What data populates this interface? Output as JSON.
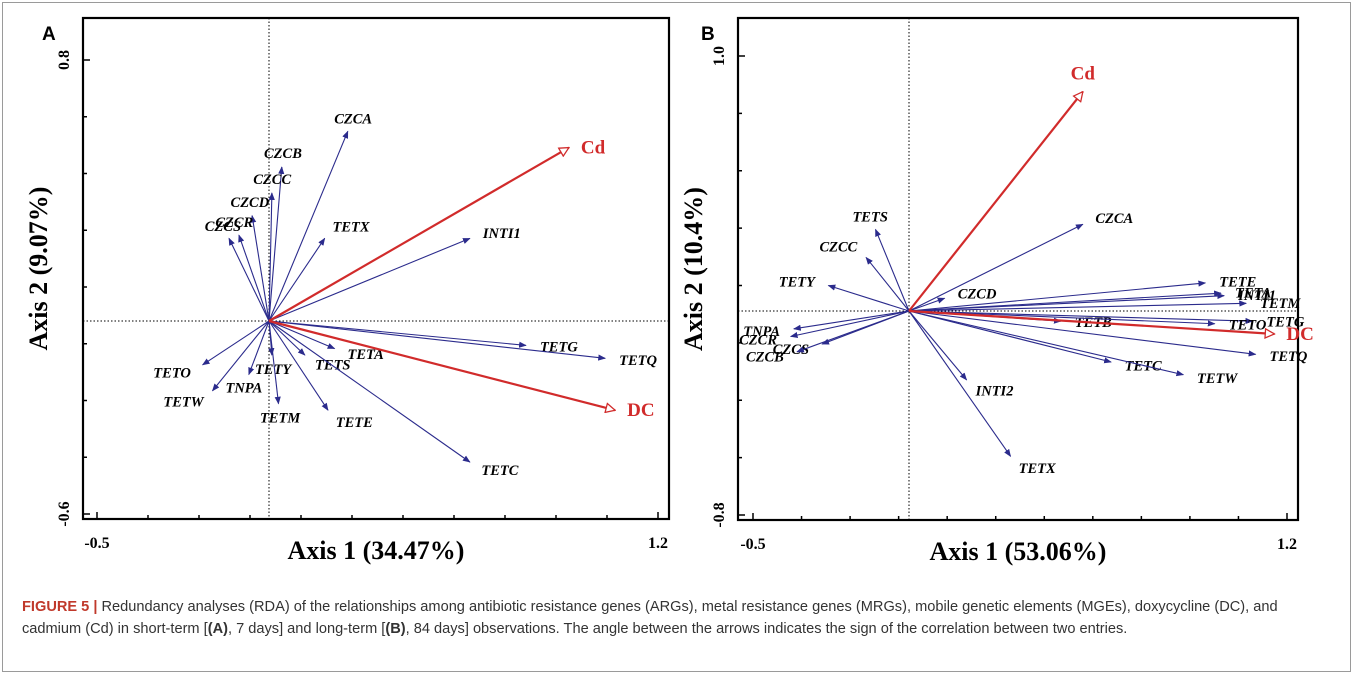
{
  "caption": {
    "label": "FIGURE 5 |",
    "p1": " Redundancy analyses (RDA) of the relationships among antibiotic resistance genes (ARGs), metal resistance genes (MRGs), mobile genetic elements (MGEs), doxycycline (DC), and cadmium (Cd) in short-term [",
    "b1": "(A)",
    "p2": ", 7 days] and long-term [",
    "b2": "(B)",
    "p3": ", 84 days] observations. The angle between the arrows indicates the sign of the correlation between two entries."
  },
  "colors": {
    "gene_arrow": "#2b2b8c",
    "env_arrow": "#d12b2b",
    "env_label": "#d12b2b"
  },
  "chart_data": [
    {
      "type": "scatter",
      "panel": "A",
      "xlabel": "Axis 1 (34.47%)",
      "ylabel": "Axis 2 (9.07%)",
      "xlim": [
        -0.5,
        1.2
      ],
      "ylim": [
        -0.6,
        0.8
      ],
      "x_ticks": [
        "-0.5",
        "1.2"
      ],
      "y_ticks": [
        "0.8",
        "-0.6"
      ],
      "vectors": [
        {
          "label": "CZCA",
          "x": 0.26,
          "y": 0.58
        },
        {
          "label": "CZCB",
          "x": 0.06,
          "y": 0.47
        },
        {
          "label": "CZCC",
          "x": 0.03,
          "y": 0.39
        },
        {
          "label": "CZCD",
          "x": -0.03,
          "y": 0.32
        },
        {
          "label": "CZCR",
          "x": -0.07,
          "y": 0.26
        },
        {
          "label": "CZCS",
          "x": -0.1,
          "y": 0.25
        },
        {
          "label": "TETX",
          "x": 0.19,
          "y": 0.25
        },
        {
          "label": "INTI1",
          "x": 0.63,
          "y": 0.25
        },
        {
          "label": "TETG",
          "x": 0.8,
          "y": -0.08
        },
        {
          "label": "TETQ",
          "x": 1.04,
          "y": -0.12
        },
        {
          "label": "TETA",
          "x": 0.22,
          "y": -0.09
        },
        {
          "label": "TETS",
          "x": 0.13,
          "y": -0.11
        },
        {
          "label": "TETY",
          "x": 0.03,
          "y": -0.11
        },
        {
          "label": "TETO",
          "x": -0.18,
          "y": -0.14
        },
        {
          "label": "TETW",
          "x": -0.15,
          "y": -0.22
        },
        {
          "label": "TNPA",
          "x": -0.04,
          "y": -0.17
        },
        {
          "label": "TETM",
          "x": 0.05,
          "y": -0.26
        },
        {
          "label": "TETE",
          "x": 0.2,
          "y": -0.28
        },
        {
          "label": "TETC",
          "x": 0.63,
          "y": -0.44
        }
      ],
      "env_vectors": [
        {
          "label": "Cd",
          "x": 0.93,
          "y": 0.53
        },
        {
          "label": "DC",
          "x": 1.07,
          "y": -0.28
        }
      ]
    },
    {
      "type": "scatter",
      "panel": "B",
      "xlabel": "Axis 1 (53.06%)",
      "ylabel": "Axis 2 (10.4%)",
      "xlim": [
        -0.5,
        1.2
      ],
      "ylim": [
        -0.8,
        1.0
      ],
      "x_ticks": [
        "-0.5",
        "1.2"
      ],
      "y_ticks": [
        "1.0",
        "-0.8"
      ],
      "vectors": [
        {
          "label": "TETS",
          "x": -0.11,
          "y": 0.32
        },
        {
          "label": "CZCC",
          "x": -0.14,
          "y": 0.21
        },
        {
          "label": "TETY",
          "x": -0.26,
          "y": 0.1
        },
        {
          "label": "CZCA",
          "x": 0.55,
          "y": 0.34
        },
        {
          "label": "CZCD",
          "x": 0.11,
          "y": 0.05
        },
        {
          "label": "TETE",
          "x": 0.94,
          "y": 0.11
        },
        {
          "label": "TETA",
          "x": 0.99,
          "y": 0.07
        },
        {
          "label": "INTI1",
          "x": 1.0,
          "y": 0.06
        },
        {
          "label": "TETM",
          "x": 1.07,
          "y": 0.03
        },
        {
          "label": "TETB",
          "x": 0.48,
          "y": -0.04
        },
        {
          "label": "TETG",
          "x": 1.09,
          "y": -0.04
        },
        {
          "label": "TETO",
          "x": 0.97,
          "y": -0.05
        },
        {
          "label": "TNPA",
          "x": -0.37,
          "y": -0.07
        },
        {
          "label": "CZCR",
          "x": -0.38,
          "y": -0.1
        },
        {
          "label": "CZCS",
          "x": -0.28,
          "y": -0.13
        },
        {
          "label": "CZCB",
          "x": -0.36,
          "y": -0.16
        },
        {
          "label": "INTI2",
          "x": 0.18,
          "y": -0.27
        },
        {
          "label": "TETC",
          "x": 0.64,
          "y": -0.2
        },
        {
          "label": "TETW",
          "x": 0.87,
          "y": -0.25
        },
        {
          "label": "TETQ",
          "x": 1.1,
          "y": -0.17
        },
        {
          "label": "TETX",
          "x": 0.32,
          "y": -0.57
        }
      ],
      "env_vectors": [
        {
          "label": "Cd",
          "x": 0.55,
          "y": 0.86
        },
        {
          "label": "DC",
          "x": 1.16,
          "y": -0.09
        }
      ]
    }
  ]
}
